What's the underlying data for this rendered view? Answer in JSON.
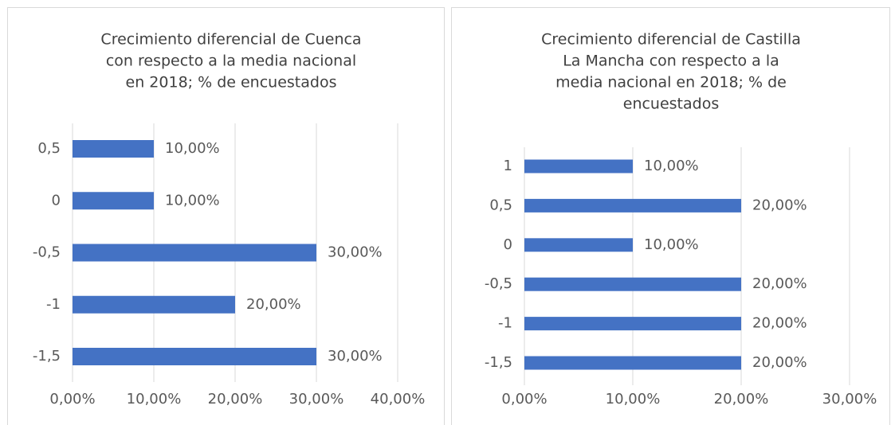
{
  "chart_data": [
    {
      "type": "bar",
      "orientation": "horizontal",
      "title": [
        "Crecimiento diferencial de Cuenca",
        "con respecto a la media nacional",
        "en 2018; % de encuestados"
      ],
      "categories": [
        "0,5",
        "0",
        "-0,5",
        "-1",
        "-1,5"
      ],
      "values": [
        10,
        10,
        30,
        20,
        30
      ],
      "value_labels": [
        "10,00%",
        "10,00%",
        "30,00%",
        "20,00%",
        "30,00%"
      ],
      "color": "#4472c4",
      "xlim": [
        0,
        40
      ],
      "xticks": [
        {
          "value": 0,
          "label": "0,00%"
        },
        {
          "value": 10,
          "label": "10,00%"
        },
        {
          "value": 20,
          "label": "20,00%"
        },
        {
          "value": 30,
          "label": "30,00%"
        },
        {
          "value": 40,
          "label": "40,00%"
        }
      ],
      "grid": true
    },
    {
      "type": "bar",
      "orientation": "horizontal",
      "title": [
        "Crecimiento diferencial de Castilla",
        "La Mancha con respecto a la",
        "media nacional en 2018; % de",
        "encuestados"
      ],
      "categories": [
        "1",
        "0,5",
        "0",
        "-0,5",
        "-1",
        "-1,5"
      ],
      "values": [
        10,
        20,
        10,
        20,
        20,
        20
      ],
      "value_labels": [
        "10,00%",
        "20,00%",
        "10,00%",
        "20,00%",
        "20,00%",
        "20,00%"
      ],
      "color": "#4472c4",
      "xlim": [
        0,
        30
      ],
      "xticks": [
        {
          "value": 0,
          "label": "0,00%"
        },
        {
          "value": 10,
          "label": "10,00%"
        },
        {
          "value": 20,
          "label": "20,00%"
        },
        {
          "value": 30,
          "label": "30,00%"
        }
      ],
      "grid": true
    }
  ]
}
